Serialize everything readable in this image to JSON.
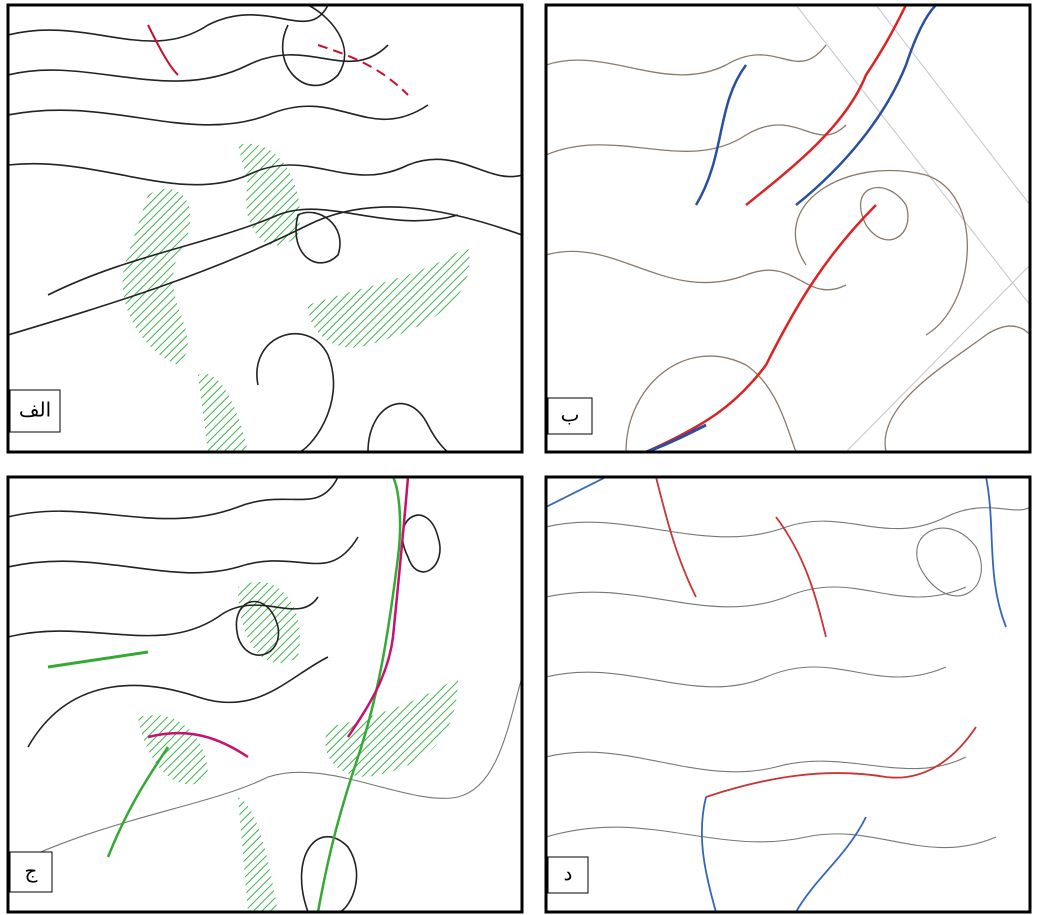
{
  "panels": [
    {
      "label": "الف"
    },
    {
      "label": "ب"
    },
    {
      "label": "ج"
    },
    {
      "label": "د"
    }
  ]
}
